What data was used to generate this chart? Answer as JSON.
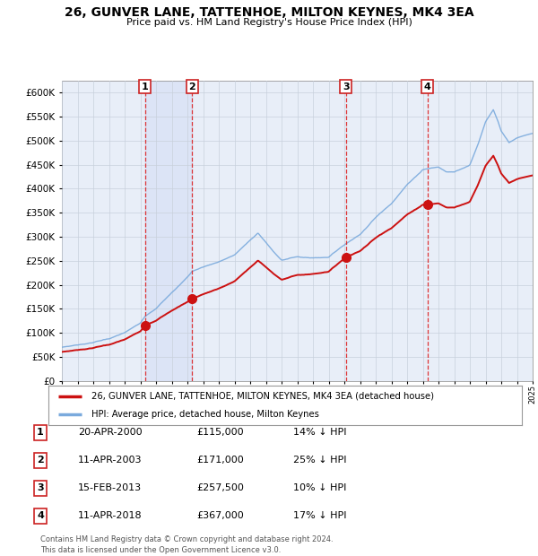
{
  "title": "26, GUNVER LANE, TATTENHOE, MILTON KEYNES, MK4 3EA",
  "subtitle": "Price paid vs. HM Land Registry's House Price Index (HPI)",
  "ylim": [
    0,
    625000
  ],
  "yticks": [
    0,
    50000,
    100000,
    150000,
    200000,
    250000,
    300000,
    350000,
    400000,
    450000,
    500000,
    550000,
    600000
  ],
  "background_color": "#ffffff",
  "plot_bg_color": "#e8eef8",
  "grid_color": "#c8d0dc",
  "hpi_color": "#7aaadd",
  "price_color": "#cc1111",
  "sale_markers": [
    {
      "index": 1,
      "price": 115000,
      "x": 2000.3
    },
    {
      "index": 2,
      "price": 171000,
      "x": 2003.3
    },
    {
      "index": 3,
      "price": 257500,
      "x": 2013.1
    },
    {
      "index": 4,
      "price": 367000,
      "x": 2018.3
    }
  ],
  "shade_pairs": [
    [
      2000.3,
      2003.3
    ]
  ],
  "legend_items": [
    {
      "label": "26, GUNVER LANE, TATTENHOE, MILTON KEYNES, MK4 3EA (detached house)",
      "color": "#cc1111"
    },
    {
      "label": "HPI: Average price, detached house, Milton Keynes",
      "color": "#7aaadd"
    }
  ],
  "table_rows": [
    {
      "num": 1,
      "date": "20-APR-2000",
      "price": "£115,000",
      "pct": "14% ↓ HPI"
    },
    {
      "num": 2,
      "date": "11-APR-2003",
      "price": "£171,000",
      "pct": "25% ↓ HPI"
    },
    {
      "num": 3,
      "date": "15-FEB-2013",
      "price": "£257,500",
      "pct": "10% ↓ HPI"
    },
    {
      "num": 4,
      "date": "11-APR-2018",
      "price": "£367,000",
      "pct": "17% ↓ HPI"
    }
  ],
  "footer": "Contains HM Land Registry data © Crown copyright and database right 2024.\nThis data is licensed under the Open Government Licence v3.0.",
  "xmin": 1995,
  "xmax": 2025
}
